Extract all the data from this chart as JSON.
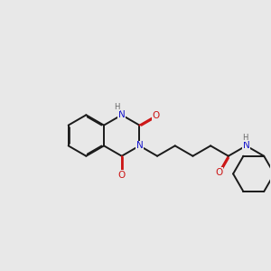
{
  "bg": "#e8e8e8",
  "bc": "#1a1a1a",
  "nc": "#1414cc",
  "oc": "#cc1414",
  "hc": "#666666",
  "lw": 1.4,
  "dbo": 0.035,
  "fs": 7.5,
  "figsize": [
    3.0,
    3.0
  ],
  "dpi": 100,
  "xlim": [
    -2.6,
    4.2
  ],
  "ylim": [
    -2.2,
    2.2
  ]
}
